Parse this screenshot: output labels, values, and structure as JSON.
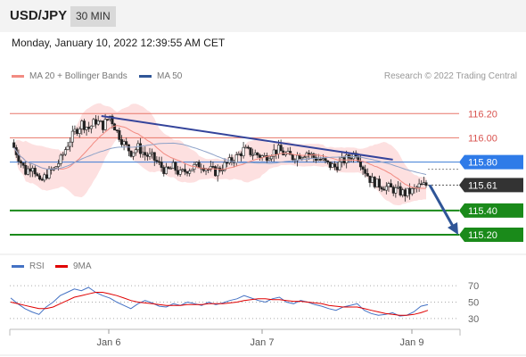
{
  "header": {
    "pair": "USD/JPY",
    "timeframe": "30 MIN"
  },
  "datetime": "Monday, January 10, 2022 12:39:55 AM CET",
  "legend": {
    "ma20": {
      "label": "MA 20 + Bollinger Bands",
      "color": "#f28b82"
    },
    "ma50": {
      "label": "MA 50",
      "color": "#2f5597"
    }
  },
  "credit": "Research © 2022 Trading Central",
  "rsi_legend": {
    "rsi": {
      "label": "RSI",
      "color": "#4472c4"
    },
    "ma": {
      "label": "9MA",
      "color": "#e00000"
    }
  },
  "colors": {
    "up": "#ffffff",
    "down": "#222222",
    "band": "#fcd5d5",
    "resistance": "#e8776a",
    "pivot": "#3a7bd5",
    "support": "#1a8a1a",
    "current": "#333333"
  },
  "chart_data": [
    {
      "type": "line",
      "ylim": [
        115.06,
        116.46
      ],
      "x_ticks": [
        "Jan 6",
        "Jan 7",
        "Jan 9"
      ],
      "levels": [
        {
          "value": 116.2,
          "label": "116.20",
          "kind": "resistance"
        },
        {
          "value": 116.0,
          "label": "116.00",
          "kind": "resistance"
        },
        {
          "value": 115.8,
          "label": "115.80",
          "kind": "pivot"
        },
        {
          "value": 115.61,
          "label": "115.61",
          "kind": "current"
        },
        {
          "value": 115.4,
          "label": "115.40",
          "kind": "support"
        },
        {
          "value": 115.2,
          "label": "115.20",
          "kind": "support"
        }
      ],
      "close_path": [
        115.96,
        115.84,
        115.72,
        115.78,
        115.62,
        115.7,
        115.74,
        115.82,
        115.95,
        116.05,
        116.12,
        116.08,
        116.14,
        116.1,
        116.18,
        116.05,
        115.95,
        115.88,
        115.92,
        115.86,
        115.84,
        115.78,
        115.72,
        115.76,
        115.7,
        115.74,
        115.76,
        115.78,
        115.74,
        115.72,
        115.76,
        115.8,
        115.84,
        115.9,
        115.88,
        115.86,
        115.84,
        115.88,
        115.9,
        115.86,
        115.84,
        115.86,
        115.88,
        115.84,
        115.82,
        115.78,
        115.76,
        115.8,
        115.84,
        115.88,
        115.76,
        115.66,
        115.62,
        115.6,
        115.58,
        115.56,
        115.54,
        115.56,
        115.6,
        115.61
      ],
      "trendline": {
        "from": [
          0.22,
          116.18
        ],
        "to": [
          0.92,
          115.82
        ]
      },
      "forecast_arrow": {
        "from": 115.61,
        "to": 115.2
      }
    },
    {
      "type": "line",
      "title": "RSI",
      "ylim": [
        20,
        80
      ],
      "y_ticks": [
        70,
        50,
        30
      ],
      "series": [
        {
          "name": "RSI",
          "values": [
            55,
            48,
            42,
            38,
            35,
            44,
            50,
            58,
            62,
            66,
            64,
            68,
            62,
            58,
            55,
            50,
            46,
            42,
            48,
            52,
            49,
            45,
            44,
            48,
            46,
            50,
            48,
            46,
            50,
            47,
            49,
            52,
            54,
            58,
            55,
            52,
            50,
            54,
            56,
            50,
            48,
            52,
            50,
            47,
            45,
            42,
            40,
            44,
            46,
            48,
            40,
            36,
            34,
            35,
            37,
            33,
            34,
            38,
            45,
            47
          ]
        },
        {
          "name": "9MA",
          "values": [
            50,
            48,
            46,
            44,
            42,
            42,
            44,
            48,
            52,
            56,
            58,
            60,
            62,
            62,
            60,
            58,
            55,
            52,
            50,
            49,
            48,
            47,
            46,
            46,
            46,
            47,
            47,
            47,
            48,
            48,
            48,
            49,
            50,
            52,
            53,
            54,
            54,
            53,
            53,
            52,
            51,
            51,
            50,
            49,
            48,
            46,
            45,
            44,
            44,
            44,
            42,
            40,
            38,
            36,
            35,
            34,
            34,
            35,
            37,
            40
          ]
        }
      ]
    }
  ]
}
